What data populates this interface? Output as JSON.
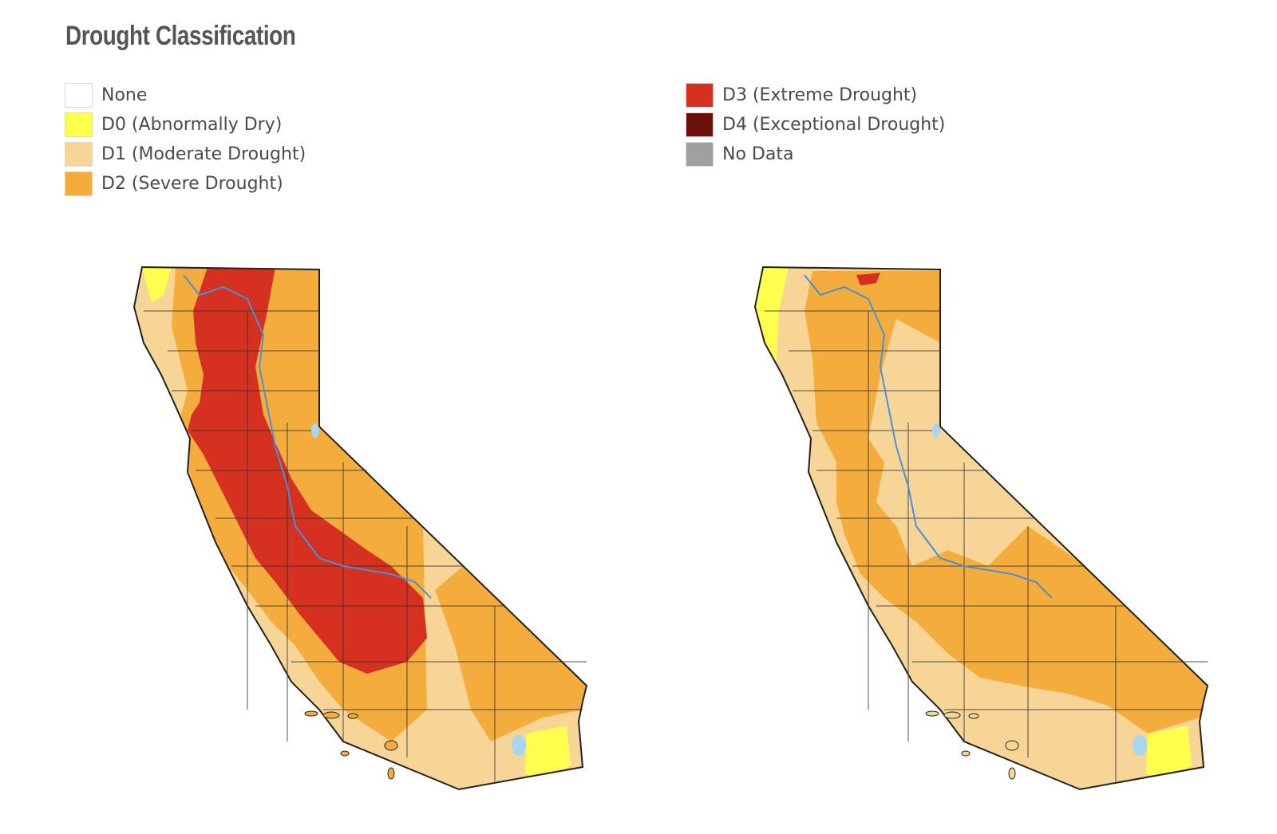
{
  "title": "Drought Classification",
  "legend": {
    "left": [
      {
        "label": "None",
        "color": "#ffffff",
        "icon": "none-swatch"
      },
      {
        "label": "D0 (Abnormally Dry)",
        "color": "#ffff4d",
        "icon": "d0-swatch"
      },
      {
        "label": "D1 (Moderate Drought)",
        "color": "#f7d596",
        "icon": "d1-swatch"
      },
      {
        "label": "D2 (Severe Drought)",
        "color": "#f4ad3d",
        "icon": "d2-swatch"
      }
    ],
    "right": [
      {
        "label": "D3 (Extreme Drought)",
        "color": "#d63020",
        "icon": "d3-swatch"
      },
      {
        "label": "D4 (Exceptional Drought)",
        "color": "#6a0f0a",
        "icon": "d4-swatch"
      },
      {
        "label": "No Data",
        "color": "#a0a0a0",
        "icon": "nodata-swatch"
      }
    ]
  },
  "maps": [
    {
      "region": "California",
      "dominant_categories": [
        "D1",
        "D2",
        "D3"
      ],
      "d3_extent": "large central band"
    },
    {
      "region": "California",
      "dominant_categories": [
        "D1",
        "D2"
      ],
      "d3_extent": "small northern patch"
    }
  ],
  "colors": {
    "water": "#a6d6f0",
    "river": "#4a8fd8",
    "outline": "#222222"
  }
}
